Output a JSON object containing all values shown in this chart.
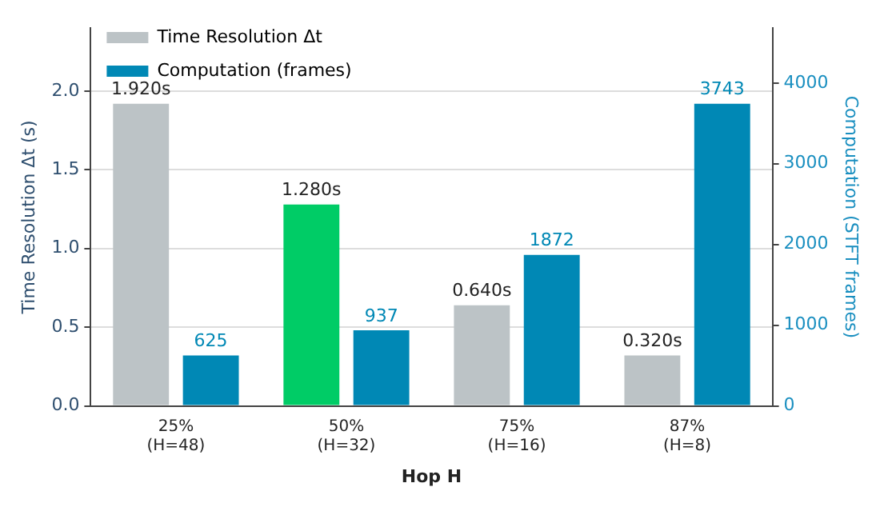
{
  "chart_data": {
    "type": "bar",
    "xlabel": "Hop H",
    "ylabel": "Time Resolution Δt (s)",
    "y2label": "Computation (STFT frames)",
    "categories": [
      "25%\n(H=48)",
      "50%\n(H=32)",
      "75%\n(H=16)",
      "87%\n(H=8)"
    ],
    "series": [
      {
        "name": "Time Resolution Δt",
        "color": "#bcc3c6",
        "colors": [
          "#bcc3c6",
          "#00cc66",
          "#bcc3c6",
          "#bcc3c6"
        ],
        "values": [
          1.92,
          1.28,
          0.64,
          0.32
        ],
        "value_labels": [
          "1.920s",
          "1.280s",
          "0.640s",
          "0.320s"
        ]
      },
      {
        "name": "Computation (frames)",
        "color": "#0088b5",
        "axis": "y2",
        "values": [
          625,
          937,
          1872,
          3743
        ],
        "value_labels": [
          "625",
          "937",
          "1872",
          "3743"
        ]
      }
    ],
    "ylim": [
      0,
      2.4
    ],
    "yticks": [
      {
        "value": 0,
        "label": "0.0"
      },
      {
        "value": 0.5,
        "label": "0.5"
      },
      {
        "value": 1,
        "label": "1.0"
      },
      {
        "value": 1.5,
        "label": "1.5"
      },
      {
        "value": 2,
        "label": "2.0"
      }
    ],
    "y2lim": [
      0,
      4680
    ],
    "y2ticks": [
      0,
      1000,
      2000,
      3000,
      4000
    ],
    "grid": "y",
    "legend": "top left"
  }
}
